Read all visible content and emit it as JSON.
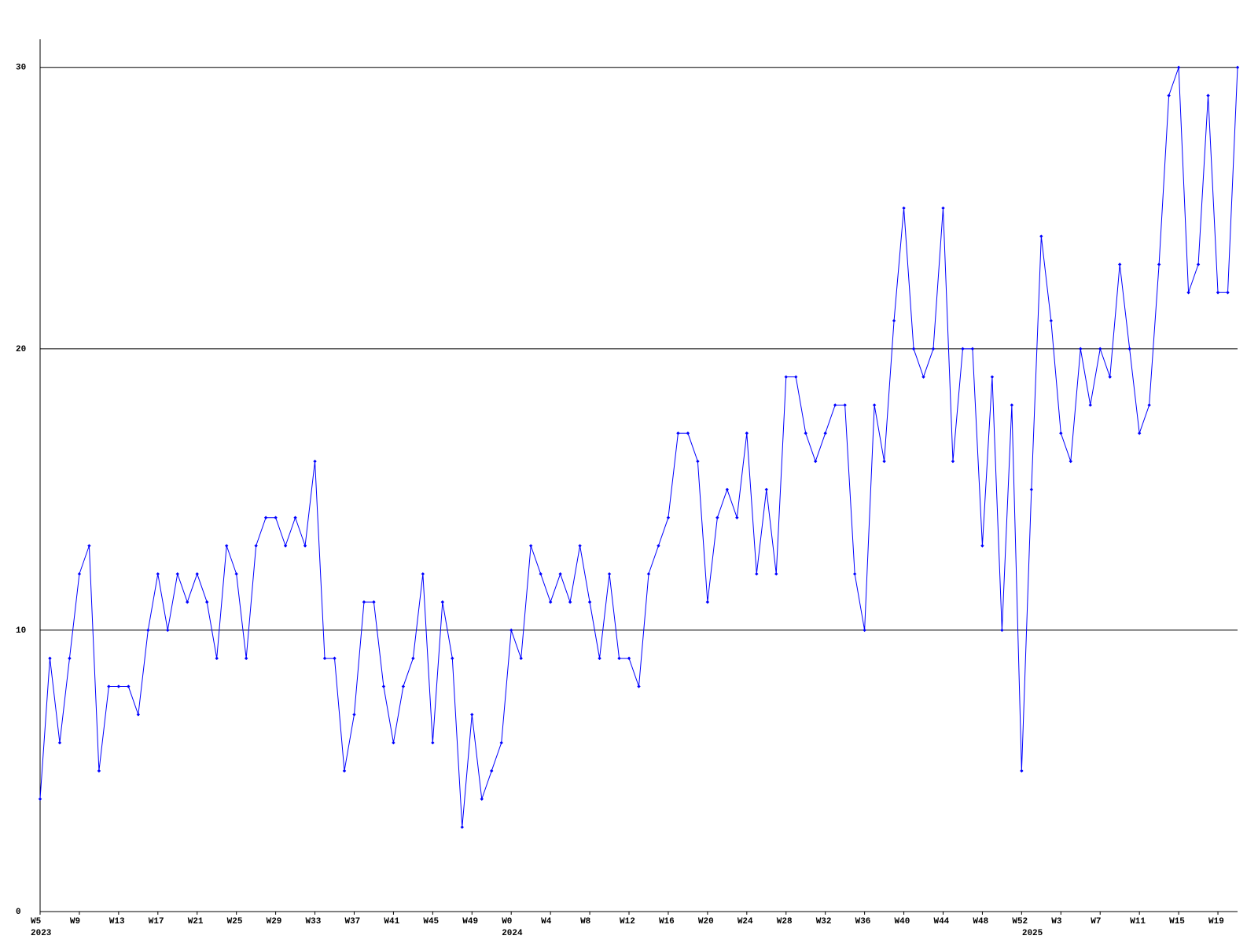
{
  "chart_data": {
    "type": "line",
    "categories": [
      "W5",
      null,
      null,
      null,
      "W9",
      null,
      null,
      null,
      "W13",
      null,
      null,
      null,
      "W17",
      null,
      null,
      null,
      "W21",
      null,
      null,
      null,
      "W25",
      null,
      null,
      null,
      "W29",
      null,
      null,
      null,
      "W33",
      null,
      null,
      null,
      "W37",
      null,
      null,
      null,
      "W41",
      null,
      null,
      null,
      "W45",
      null,
      null,
      null,
      "W49",
      null,
      null,
      null,
      "W0",
      null,
      null,
      null,
      "W4",
      null,
      null,
      null,
      "W8",
      null,
      null,
      null,
      "W12",
      null,
      null,
      null,
      "W16",
      null,
      null,
      null,
      "W20",
      null,
      null,
      null,
      "W24",
      null,
      null,
      null,
      "W28",
      null,
      null,
      null,
      "W32",
      null,
      null,
      null,
      "W36",
      null,
      null,
      null,
      "W40",
      null,
      null,
      null,
      "W44",
      null,
      null,
      null,
      "W48",
      null,
      null,
      null,
      "W52",
      null,
      null,
      null,
      "W3",
      null,
      null,
      null,
      "W7",
      null,
      null,
      null,
      "W11",
      null,
      null,
      null,
      "W15",
      null,
      null,
      null,
      "W19",
      null,
      null
    ],
    "year_labels": [
      "2023",
      null,
      null,
      null,
      null,
      null,
      null,
      null,
      null,
      null,
      null,
      null,
      null,
      null,
      null,
      null,
      null,
      null,
      null,
      null,
      null,
      null,
      null,
      null,
      null,
      null,
      null,
      null,
      null,
      null,
      null,
      null,
      null,
      null,
      null,
      null,
      null,
      null,
      null,
      null,
      null,
      null,
      null,
      null,
      null,
      null,
      null,
      null,
      "2024",
      null,
      null,
      null,
      null,
      null,
      null,
      null,
      null,
      null,
      null,
      null,
      null,
      null,
      null,
      null,
      null,
      null,
      null,
      null,
      null,
      null,
      null,
      null,
      null,
      null,
      null,
      null,
      null,
      null,
      null,
      null,
      null,
      null,
      null,
      null,
      null,
      null,
      null,
      null,
      null,
      null,
      null,
      null,
      null,
      null,
      null,
      null,
      null,
      null,
      null,
      null,
      null,
      "2025",
      null,
      null,
      null,
      null,
      null,
      null,
      null,
      null,
      null,
      null,
      null,
      null,
      null,
      null,
      null,
      null,
      null,
      null,
      null,
      null,
      null
    ],
    "series": [
      {
        "color": "#0000ff",
        "values": [
          4,
          9,
          6,
          9,
          12,
          13,
          5,
          8,
          8,
          8,
          7,
          10,
          12,
          10,
          12,
          11,
          12,
          11,
          9,
          13,
          12,
          9,
          13,
          14,
          14,
          13,
          14,
          13,
          16,
          9,
          9,
          5,
          7,
          11,
          11,
          8,
          6,
          8,
          9,
          12,
          6,
          11,
          9,
          3,
          7,
          4,
          5,
          6,
          10,
          9,
          13,
          12,
          11,
          12,
          11,
          13,
          11,
          9,
          12,
          9,
          9,
          8,
          12,
          13,
          14,
          17,
          17,
          16,
          11,
          14,
          15,
          14,
          17,
          12,
          15,
          12,
          19,
          19,
          17,
          16,
          17,
          18,
          18,
          12,
          10,
          18,
          16,
          21,
          25,
          20,
          19,
          20,
          25,
          16,
          20,
          20,
          13,
          19,
          10,
          18,
          5,
          15,
          24,
          21,
          17,
          16,
          20,
          18,
          20,
          19,
          23,
          20,
          17,
          18,
          23,
          29,
          30,
          22,
          23,
          29,
          22,
          22,
          30
        ]
      }
    ],
    "ylim": [
      0,
      31
    ],
    "yticks": [
      0,
      10,
      20,
      30
    ],
    "grid": true
  }
}
